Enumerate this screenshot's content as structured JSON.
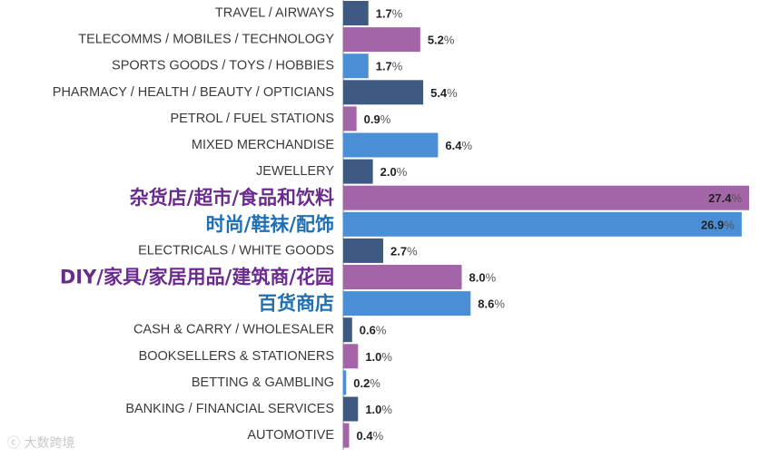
{
  "chart_data": {
    "type": "bar",
    "orientation": "horizontal",
    "categories": [
      "TRAVEL / AIRWAYS",
      "TELECOMMS / MOBILES / TECHNOLOGY",
      "SPORTS GOODS / TOYS / HOBBIES",
      "PHARMACY / HEALTH / BEAUTY / OPTICIANS",
      "PETROL / FUEL STATIONS",
      "MIXED MERCHANDISE",
      "JEWELLERY",
      "杂货店/超市/食品和饮料",
      "时尚/鞋袜/配饰",
      "ELECTRICALS / WHITE GOODS",
      "DIY/家具/家居用品/建筑商/花园",
      "百货商店",
      "CASH & CARRY / WHOLESALER",
      "BOOKSELLERS & STATIONERS",
      "BETTING & GAMBLING",
      "BANKING / FINANCIAL SERVICES",
      "AUTOMOTIVE"
    ],
    "values": [
      1.7,
      5.2,
      1.7,
      5.4,
      0.9,
      6.4,
      2.0,
      27.4,
      26.9,
      2.7,
      8.0,
      8.6,
      0.6,
      1.0,
      0.2,
      1.0,
      0.4
    ],
    "value_labels": [
      "1.7",
      "5.2",
      "1.7",
      "5.4",
      "0.9",
      "6.4",
      "2.0",
      "27.4",
      "26.9",
      "2.7",
      "8.0",
      "8.6",
      "0.6",
      "1.0",
      "0.2",
      "1.0",
      "0.4"
    ],
    "unit": "%",
    "bar_colors": [
      "#3f5a82",
      "#a464a8",
      "#4a8fd6",
      "#3f5a82",
      "#a464a8",
      "#4a8fd6",
      "#3f5a82",
      "#a464a8",
      "#4a8fd6",
      "#3f5a82",
      "#a464a8",
      "#4a8fd6",
      "#3f5a82",
      "#a464a8",
      "#4a8fd6",
      "#3f5a82",
      "#a464a8"
    ],
    "label_colors": [
      "#3a3a3a",
      "#3a3a3a",
      "#3a3a3a",
      "#3a3a3a",
      "#3a3a3a",
      "#3a3a3a",
      "#3a3a3a",
      "#6a2c8c",
      "#1f6fb3",
      "#3a3a3a",
      "#6a2c8c",
      "#1f6fb3",
      "#3a3a3a",
      "#3a3a3a",
      "#3a3a3a",
      "#3a3a3a",
      "#3a3a3a"
    ],
    "highlighted_categories": [
      7,
      8,
      10,
      11
    ],
    "xlim": [
      0,
      27.4
    ],
    "grid": false,
    "legend": "none"
  },
  "watermark": "大数跨境"
}
